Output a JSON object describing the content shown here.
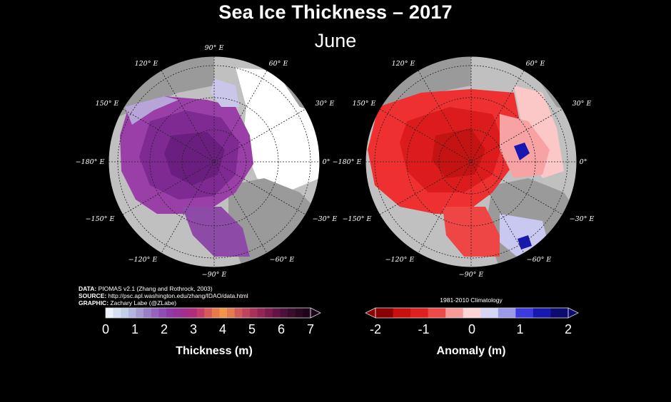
{
  "title": "Sea Ice Thickness – 2017",
  "subtitle": "June",
  "credits": {
    "data_label": "DATA:",
    "data_text": "PIOMAS v2.1 (Zhang and Rothrock, 2003)",
    "source_label": "SOURCE:",
    "source_text": "http://psc.apl.washington.edu/zhang/IDAO/data.html",
    "graphic_label": "GRAPHIC:",
    "graphic_text": "Zachary Labe (@ZLabe)"
  },
  "map_labels": {
    "lon_90e": "90° E",
    "lon_120e": "120° E",
    "lon_60e": "60° E",
    "lon_150e": "150° E",
    "lon_30e": "30° E",
    "lon_180e": "−180° E",
    "lon_0": "0°",
    "lon_m150e": "−150° E",
    "lon_m30e": "−30° E",
    "lon_m120e": "−120° E",
    "lon_m60e": "−60° E",
    "lon_m90e": "−90° E"
  },
  "thickness_colorbar": {
    "title": "Thickness (m)",
    "ticks": [
      "0",
      "1",
      "2",
      "3",
      "4",
      "5",
      "6",
      "7"
    ],
    "colors": [
      "#eef3fb",
      "#d6e0f2",
      "#c2cfe9",
      "#b3b6de",
      "#a69bd2",
      "#9a7fc8",
      "#9563be",
      "#8f4db3",
      "#8f3aa6",
      "#993299",
      "#a32e8c",
      "#b02d7c",
      "#c53b6c",
      "#d9585c",
      "#e87a4a",
      "#f2954a",
      "#e47a52",
      "#d25a5a",
      "#bf435c",
      "#a8325a",
      "#912656",
      "#7a1c4e",
      "#621545",
      "#4d1039",
      "#3a0c2d",
      "#2a0822",
      "#1e0418"
    ]
  },
  "anomaly_colorbar": {
    "title": "Anomaly (m)",
    "climatology": "1981-2010 Climatology",
    "ticks": [
      "-2",
      "-1",
      "0",
      "1",
      "2"
    ],
    "colors": [
      "#8b0000",
      "#c81010",
      "#e02020",
      "#ef4a4a",
      "#f79a9a",
      "#fdd5d5",
      "#d6d6f4",
      "#9a9ae8",
      "#3b3be0",
      "#1818b0",
      "#0c0c70"
    ]
  }
}
